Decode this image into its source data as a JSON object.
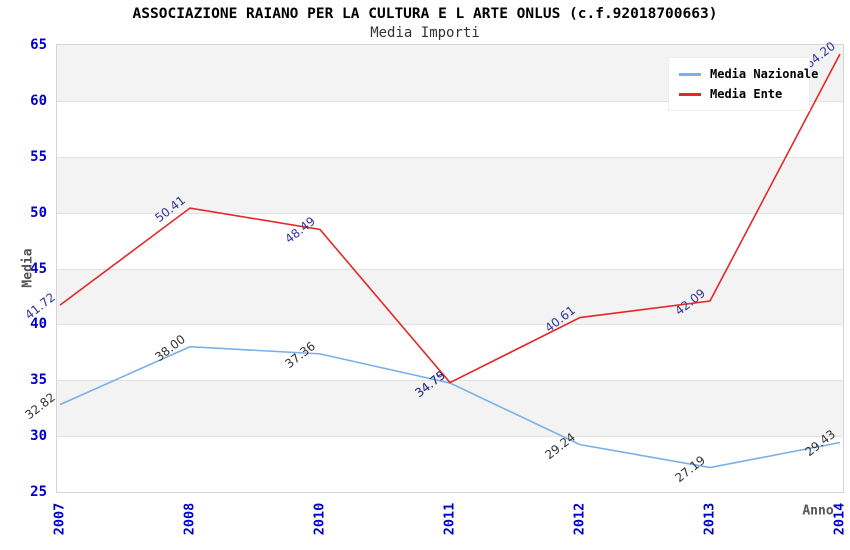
{
  "header": {
    "title": "ASSOCIAZIONE RAIANO PER LA CULTURA E L ARTE ONLUS (c.f.92018700663)",
    "subtitle": "Media Importi"
  },
  "chart_data": {
    "type": "line",
    "title": "ASSOCIAZIONE RAIANO PER LA CULTURA E L ARTE ONLUS (c.f.92018700663)",
    "subtitle": "Media Importi",
    "x": [
      "2007",
      "2008",
      "2010",
      "2011",
      "2012",
      "2013",
      "2014"
    ],
    "series": [
      {
        "name": "Media Nazionale",
        "color": "#79b1e8",
        "label_color": "#333333",
        "values": [
          32.82,
          38.0,
          37.36,
          34.75,
          29.24,
          27.19,
          29.43
        ]
      },
      {
        "name": "Media Ente",
        "color": "#e62727",
        "label_color": "#333399",
        "values": [
          41.72,
          50.41,
          48.49,
          34.79,
          40.61,
          42.09,
          64.2
        ]
      }
    ],
    "xlabel": "Anno",
    "ylabel": "Media",
    "ylim": [
      25,
      65
    ],
    "ytick_step": 5,
    "grid": true,
    "legend_position": "top-right",
    "colors": {
      "tick_label": "#0000cc",
      "band_gray": "#f3f3f3",
      "band_white": "#ffffff",
      "gridline": "#e2e2e2",
      "frame": "#d5d5d5",
      "axis_title": "#555555"
    }
  }
}
